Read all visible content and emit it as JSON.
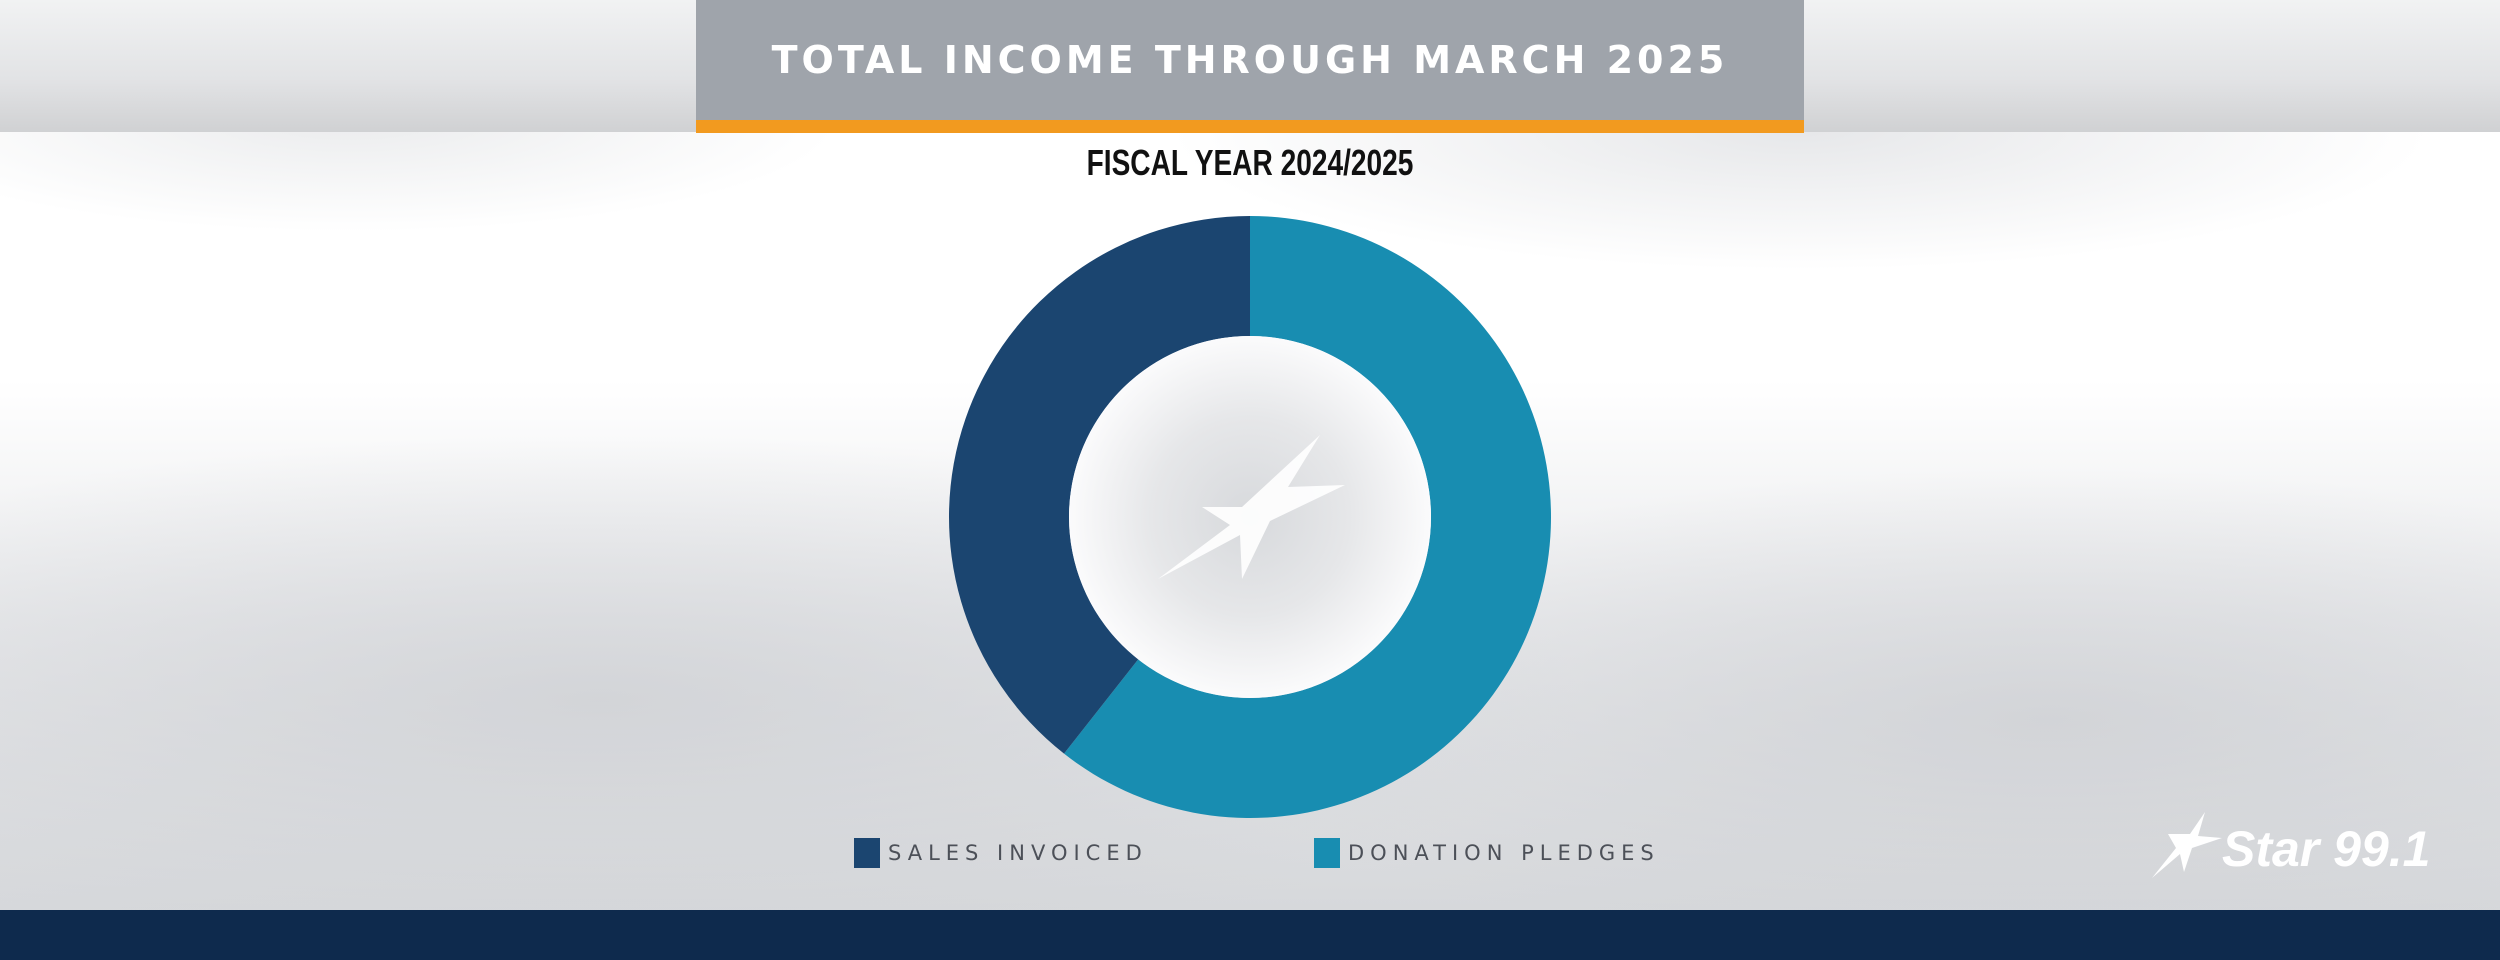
{
  "header": {
    "title": "TOTAL INCOME THROUGH MARCH 2025",
    "accent_color": "#f29a1f",
    "box_color": "#9fa4ab"
  },
  "chart_data": {
    "type": "pie",
    "variant": "donut",
    "subtitle": "FISCAL YEAR 2024/2025",
    "series": [
      {
        "name": "SALES INVOICED",
        "value": 39.4,
        "color": "#1b4570"
      },
      {
        "name": "DONATION PLEDGES",
        "value": 60.6,
        "color": "#188db1"
      }
    ],
    "start_angle_deg": 0,
    "direction": "clockwise-from-top",
    "legend_position": "bottom",
    "center_icon": "star-swoosh-icon"
  },
  "brand": {
    "logo_text": "Star 99.1",
    "logo_icon": "star-swoosh-icon"
  },
  "footer": {
    "bar_color": "#0e2a4d"
  }
}
